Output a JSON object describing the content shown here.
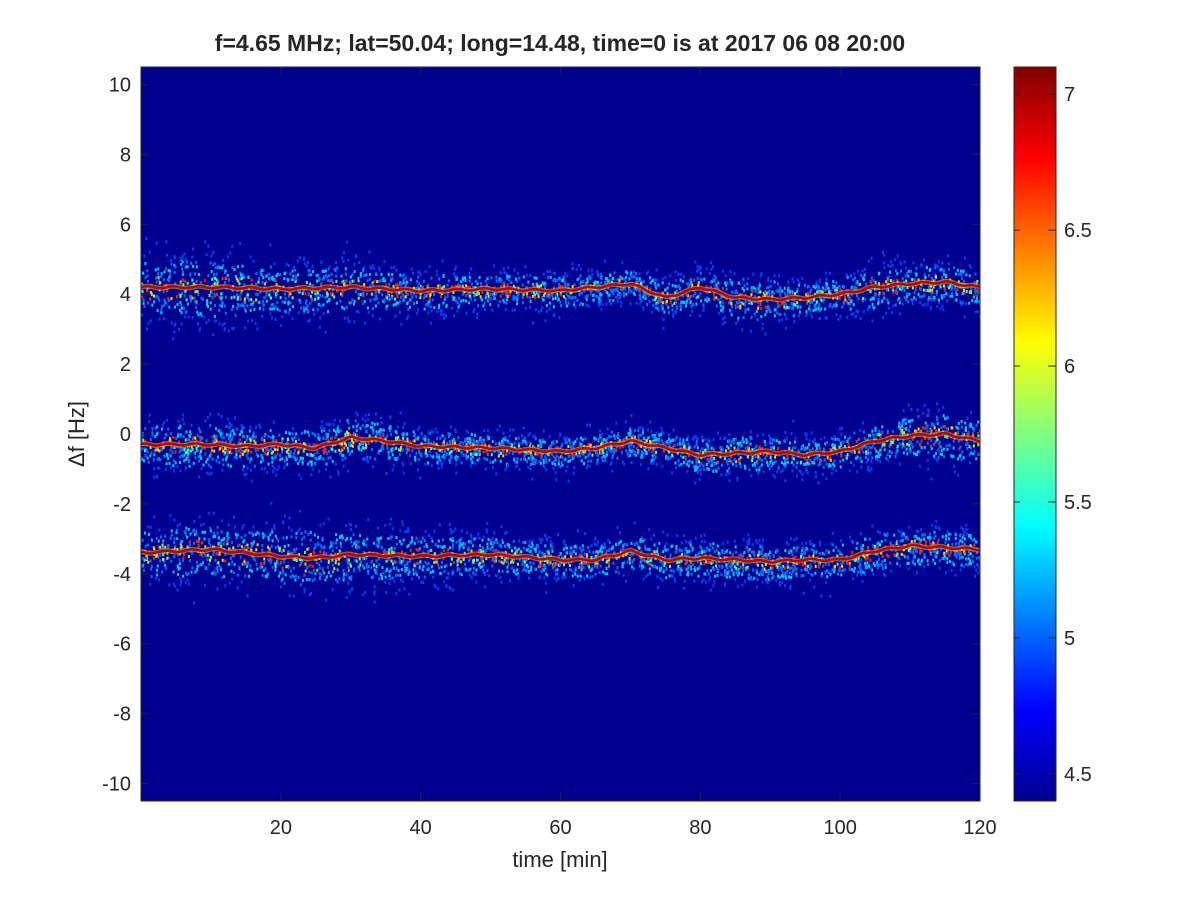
{
  "chart_data": {
    "type": "heatmap",
    "title": "f=4.65 MHz;  lat=50.04; long=14.48, time=0 is at 2017 06 08 20:00",
    "xlabel": "time [min]",
    "ylabel": "Δf [Hz]",
    "xlim": [
      0,
      120
    ],
    "ylim": [
      -10.5,
      10.5
    ],
    "x_ticks": [
      20,
      40,
      60,
      80,
      100,
      120
    ],
    "y_ticks": [
      10,
      8,
      6,
      4,
      2,
      0,
      -2,
      -4,
      -6,
      -8,
      -10
    ],
    "colorbar": {
      "colormap": "jet",
      "range": [
        4.4,
        7.1
      ],
      "ticks": [
        4.5,
        5,
        5.5,
        6,
        6.5,
        7
      ]
    },
    "background_color": "#00008f",
    "traces": [
      {
        "time": [
          0,
          10,
          20,
          30,
          40,
          50,
          60,
          65,
          70,
          75,
          80,
          85,
          90,
          95,
          100,
          105,
          110,
          115,
          120
        ],
        "delta_f": [
          4.2,
          4.2,
          4.15,
          4.2,
          4.1,
          4.15,
          4.1,
          4.2,
          4.3,
          3.9,
          4.2,
          3.9,
          3.85,
          3.9,
          4.0,
          4.2,
          4.3,
          4.35,
          4.2
        ],
        "spread": [
          0.9,
          1.0,
          0.8,
          0.8,
          0.6,
          0.55,
          0.55,
          0.5,
          0.5,
          0.55,
          0.6,
          0.7,
          0.7,
          0.5,
          0.6,
          0.7,
          0.6,
          0.6,
          0.6
        ]
      },
      {
        "time": [
          0,
          5,
          10,
          15,
          20,
          25,
          30,
          35,
          40,
          50,
          60,
          65,
          70,
          75,
          80,
          85,
          90,
          95,
          100,
          105,
          110,
          115,
          120
        ],
        "delta_f": [
          -0.3,
          -0.3,
          -0.3,
          -0.35,
          -0.3,
          -0.4,
          -0.1,
          -0.2,
          -0.35,
          -0.4,
          -0.5,
          -0.4,
          -0.2,
          -0.4,
          -0.6,
          -0.55,
          -0.5,
          -0.6,
          -0.5,
          -0.2,
          -0.05,
          0.0,
          -0.2
        ],
        "spread": [
          0.7,
          0.7,
          0.75,
          0.7,
          0.65,
          0.65,
          0.7,
          0.6,
          0.55,
          0.5,
          0.5,
          0.5,
          0.5,
          0.5,
          0.55,
          0.6,
          0.6,
          0.5,
          0.55,
          0.6,
          0.7,
          0.8,
          0.7
        ]
      },
      {
        "time": [
          0,
          10,
          20,
          25,
          30,
          40,
          50,
          60,
          65,
          70,
          75,
          80,
          85,
          90,
          95,
          100,
          105,
          110,
          120
        ],
        "delta_f": [
          -3.4,
          -3.3,
          -3.5,
          -3.55,
          -3.45,
          -3.5,
          -3.45,
          -3.6,
          -3.6,
          -3.35,
          -3.6,
          -3.55,
          -3.6,
          -3.65,
          -3.6,
          -3.6,
          -3.35,
          -3.2,
          -3.3
        ],
        "spread": [
          0.8,
          0.9,
          0.9,
          1.0,
          0.9,
          0.7,
          0.6,
          0.55,
          0.55,
          0.55,
          0.6,
          0.6,
          0.6,
          0.6,
          0.55,
          0.6,
          0.6,
          0.6,
          0.55
        ]
      }
    ]
  }
}
